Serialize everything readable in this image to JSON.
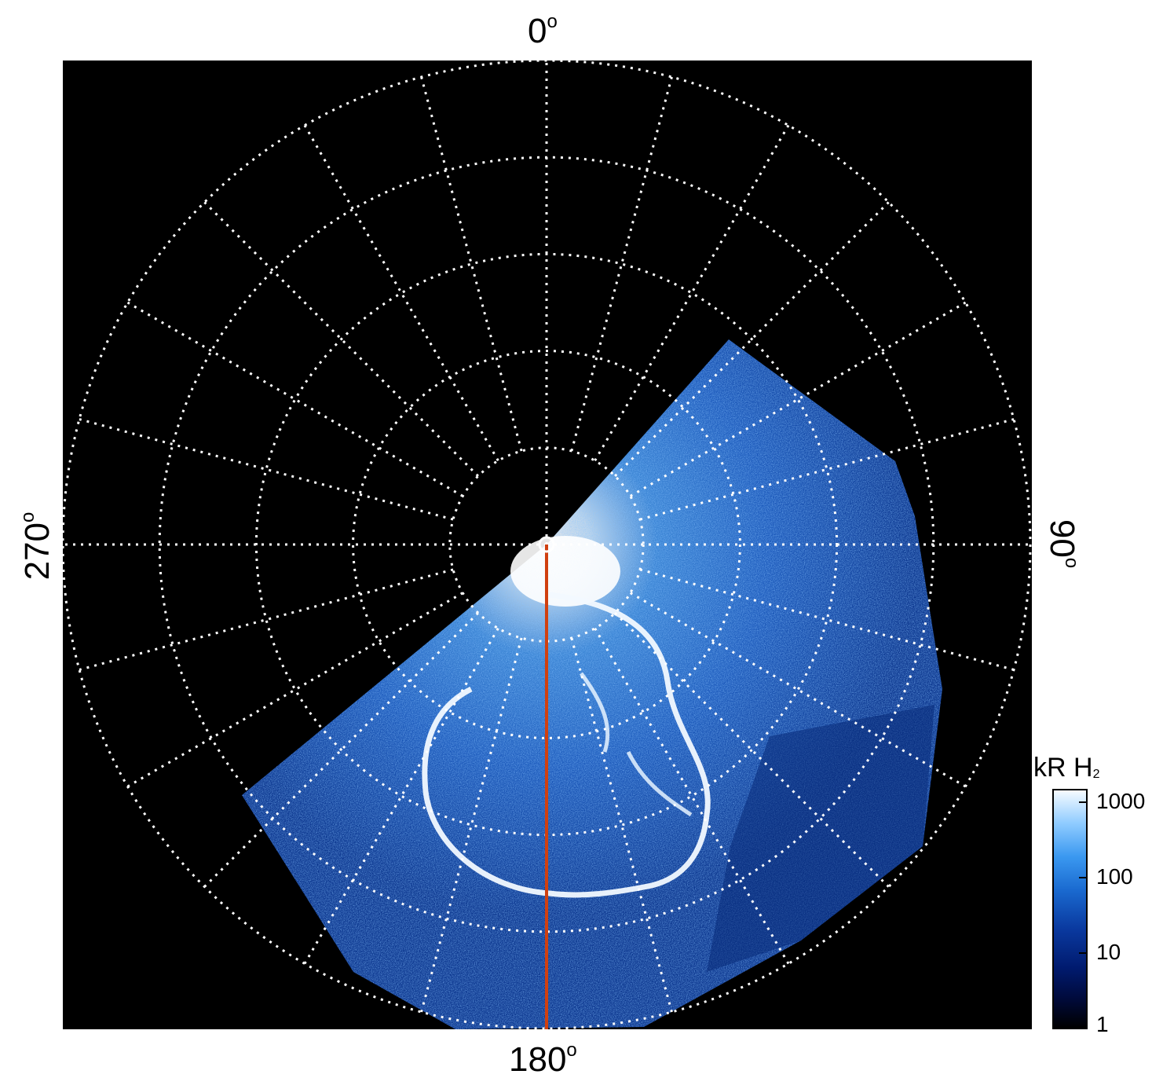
{
  "labels": {
    "top": "0",
    "bottom": "180",
    "left": "270",
    "right": "90",
    "degree": "o"
  },
  "colorbar": {
    "title": "kR H",
    "title_sub": "2",
    "ticks": [
      "1000",
      "100",
      "10",
      "1"
    ]
  },
  "colors": {
    "background": "#000000",
    "grid": "#ffffff",
    "meridian_line": "#d04010",
    "emission_low": "#001a6e",
    "emission_mid": "#1a6ad0",
    "emission_high": "#f6fbff"
  }
}
